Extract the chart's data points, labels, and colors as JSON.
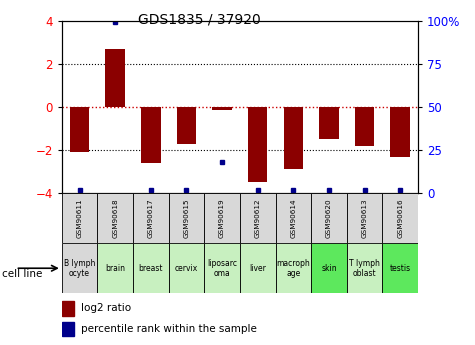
{
  "title": "GDS1835 / 37920",
  "samples": [
    "GSM90611",
    "GSM90618",
    "GSM90617",
    "GSM90615",
    "GSM90619",
    "GSM90612",
    "GSM90614",
    "GSM90620",
    "GSM90613",
    "GSM90616"
  ],
  "cell_lines": [
    "B lymph\nocyte",
    "brain",
    "breast",
    "cervix",
    "liposarc\noma",
    "liver",
    "macroph\nage",
    "skin",
    "T lymph\noblast",
    "testis"
  ],
  "cell_colors": [
    "#d8d8d8",
    "#c8f0c0",
    "#c8f0c0",
    "#c8f0c0",
    "#c8f0c0",
    "#c8f0c0",
    "#c8f0c0",
    "#5de85d",
    "#c8f0c0",
    "#5de85d"
  ],
  "log2_ratio": [
    -2.1,
    2.7,
    -2.6,
    -1.7,
    -0.15,
    -3.5,
    -2.9,
    -1.5,
    -1.8,
    -2.3
  ],
  "percentile_rank": [
    2,
    99,
    2,
    2,
    18,
    2,
    2,
    2,
    2,
    2
  ],
  "ylim_left": [
    -4,
    4
  ],
  "ylim_right": [
    0,
    100
  ],
  "bar_color": "#8B0000",
  "dot_color": "#00008B",
  "bar_width": 0.55,
  "zero_line_color": "#cc0000",
  "right_yticks": [
    0,
    25,
    50,
    75,
    100
  ],
  "right_yticklabels": [
    "0",
    "25",
    "50",
    "75",
    "100%"
  ]
}
